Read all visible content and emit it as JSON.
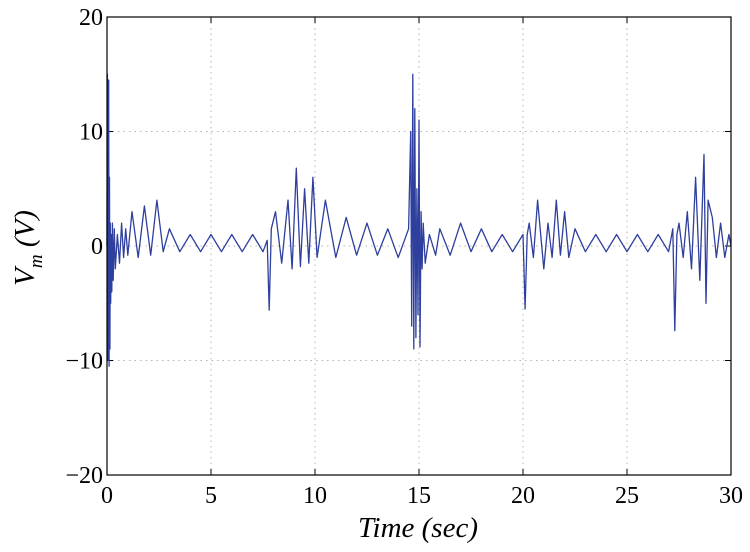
{
  "chart_data": {
    "type": "line",
    "title": "",
    "xlabel": "Time (sec)",
    "ylabel": {
      "main": "V",
      "subscript": "m",
      "unit": " (V)"
    },
    "xlim": [
      0,
      30
    ],
    "ylim": [
      -20,
      20
    ],
    "xticks": [
      0,
      5,
      10,
      15,
      20,
      25,
      30
    ],
    "yticks": [
      -20,
      -10,
      0,
      10,
      20
    ],
    "xtick_labels": [
      "0",
      "5",
      "10",
      "15",
      "20",
      "25",
      "30"
    ],
    "ytick_labels": [
      "−20",
      "−10",
      "0",
      "10",
      "20"
    ],
    "grid": true,
    "series": [
      {
        "color": "#2e3f9e",
        "x": [
          0.0,
          0.02,
          0.05,
          0.08,
          0.1,
          0.12,
          0.14,
          0.16,
          0.18,
          0.2,
          0.23,
          0.26,
          0.3,
          0.35,
          0.4,
          0.5,
          0.6,
          0.7,
          0.8,
          0.9,
          1.0,
          1.2,
          1.5,
          1.8,
          2.1,
          2.4,
          2.7,
          3.0,
          3.5,
          4.0,
          4.5,
          5.0,
          5.5,
          6.0,
          6.5,
          7.0,
          7.5,
          7.7,
          7.8,
          7.9,
          8.1,
          8.4,
          8.7,
          8.9,
          9.1,
          9.3,
          9.5,
          9.7,
          9.9,
          10.1,
          10.5,
          11.0,
          11.5,
          12.0,
          12.5,
          13.0,
          13.5,
          14.0,
          14.5,
          14.6,
          14.65,
          14.7,
          14.75,
          14.8,
          14.85,
          14.9,
          14.95,
          15.0,
          15.05,
          15.1,
          15.15,
          15.2,
          15.3,
          15.5,
          15.8,
          16.0,
          16.5,
          17.0,
          17.5,
          18.0,
          18.5,
          19.0,
          19.5,
          20.0,
          20.1,
          20.2,
          20.3,
          20.5,
          20.7,
          21.0,
          21.2,
          21.4,
          21.6,
          21.8,
          22.0,
          22.2,
          22.5,
          23.0,
          23.5,
          24.0,
          24.5,
          25.0,
          25.5,
          26.0,
          26.5,
          27.0,
          27.2,
          27.3,
          27.4,
          27.5,
          27.7,
          27.9,
          28.1,
          28.3,
          28.5,
          28.7,
          28.8,
          28.9,
          29.1,
          29.3,
          29.5,
          29.7,
          29.9,
          30.0
        ],
        "values": [
          0,
          15,
          -10,
          14.5,
          -10.5,
          6,
          -9,
          2,
          -5,
          1,
          -4,
          2,
          -3,
          1.5,
          -2,
          1,
          -1.5,
          2,
          -1,
          1.5,
          -0.8,
          3,
          -1,
          3.5,
          -0.8,
          4,
          -0.5,
          1.5,
          -0.5,
          1,
          -0.5,
          1,
          -0.5,
          1,
          -0.5,
          1,
          -0.5,
          0.5,
          -5.6,
          1.5,
          3,
          -1.5,
          4,
          -2,
          6.8,
          -1.8,
          5,
          -1.5,
          6,
          -1,
          4,
          -1,
          2.5,
          -0.8,
          2,
          -0.8,
          1.5,
          -1,
          1.5,
          10,
          -7,
          15,
          -9,
          12,
          -8,
          5,
          -6,
          11,
          -8.8,
          3,
          -2,
          2,
          -1.5,
          1,
          -0.8,
          1.5,
          -0.8,
          2,
          -0.5,
          1.5,
          -0.5,
          1,
          -0.5,
          1,
          -5.5,
          1,
          2,
          -1,
          4,
          -2,
          2,
          -1,
          4,
          -0.8,
          3,
          -1,
          1.5,
          -0.5,
          1,
          -0.5,
          1,
          -0.5,
          1,
          -0.5,
          1,
          -0.5,
          1.5,
          -7.4,
          1,
          2,
          -1,
          3,
          -2,
          6,
          -3,
          8,
          -5,
          4,
          2.5,
          -1,
          2,
          -1,
          1,
          0
        ]
      }
    ]
  }
}
